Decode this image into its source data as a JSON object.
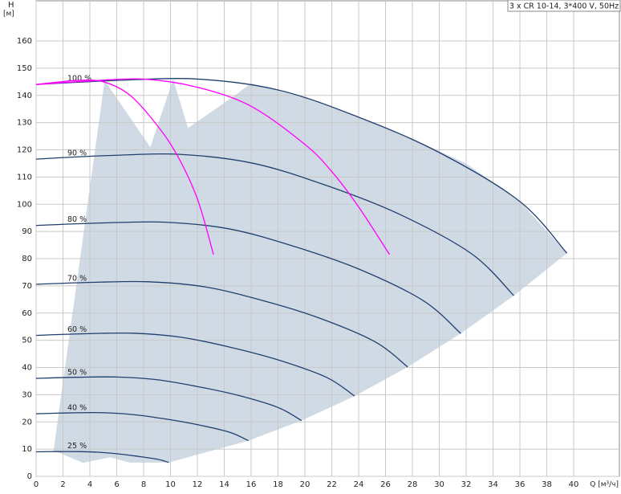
{
  "chart_data": {
    "type": "line",
    "title": "3 x CR 10-14, 3*400 V, 50Hz",
    "y_label": "H",
    "y_unit": "[м]",
    "x_label": "Q [м³/ч]",
    "xlim": [
      0,
      43.4
    ],
    "ylim": [
      0,
      175
    ],
    "xticks": [
      0,
      2,
      4,
      6,
      8,
      10,
      12,
      14,
      16,
      18,
      20,
      22,
      24,
      26,
      28,
      30,
      32,
      34,
      36,
      38,
      40
    ],
    "yticks": [
      0,
      10,
      20,
      30,
      40,
      50,
      60,
      70,
      80,
      90,
      100,
      110,
      120,
      130,
      140,
      150,
      160
    ],
    "grid": true,
    "series": [
      {
        "name": "100 %",
        "color": "#1f3f6e",
        "x": [
          0,
          6,
          12,
          18,
          24,
          30,
          36,
          39.5
        ],
        "values": [
          144,
          145.5,
          146,
          142,
          132,
          119,
          101,
          82
        ]
      },
      {
        "name": "90 %",
        "color": "#1f3f6e",
        "x": [
          0,
          5.4,
          10.8,
          16.2,
          21.6,
          27,
          32.4,
          35.55
        ],
        "values": [
          116.6,
          117.9,
          118.3,
          115.0,
          106.9,
          96.4,
          81.8,
          66.4
        ]
      },
      {
        "name": "80 %",
        "color": "#1f3f6e",
        "x": [
          0,
          4.8,
          9.6,
          14.4,
          19.2,
          24,
          28.8,
          31.6
        ],
        "values": [
          92.2,
          93.1,
          93.4,
          90.9,
          84.5,
          76.2,
          64.6,
          52.5
        ]
      },
      {
        "name": "70 %",
        "color": "#1f3f6e",
        "x": [
          0,
          4.2,
          8.4,
          12.6,
          16.8,
          21,
          25.2,
          27.65
        ],
        "values": [
          70.6,
          71.3,
          71.5,
          69.6,
          64.7,
          58.3,
          49.5,
          40.2
        ]
      },
      {
        "name": "60 %",
        "color": "#1f3f6e",
        "x": [
          0,
          3.6,
          7.2,
          10.8,
          14.4,
          18,
          21.6,
          23.7
        ],
        "values": [
          51.8,
          52.4,
          52.6,
          51.1,
          47.5,
          42.8,
          36.4,
          29.5
        ]
      },
      {
        "name": "50 %",
        "color": "#1f3f6e",
        "x": [
          0,
          3,
          6,
          9,
          12,
          15,
          18,
          19.75
        ],
        "values": [
          36,
          36.4,
          36.5,
          35.5,
          33,
          29.8,
          25.3,
          20.5
        ]
      },
      {
        "name": "40 %",
        "color": "#1f3f6e",
        "x": [
          0,
          2.4,
          4.8,
          7.2,
          9.6,
          12,
          14.4,
          15.8
        ],
        "values": [
          23,
          23.3,
          23.4,
          22.7,
          21.1,
          19,
          16.2,
          13.1
        ]
      },
      {
        "name": "25 %",
        "color": "#1f3f6e",
        "x": [
          0,
          1.5,
          3,
          4.5,
          6,
          7.5,
          9,
          9.88
        ],
        "values": [
          9,
          9.1,
          9.1,
          8.9,
          8.3,
          7.4,
          6.3,
          5.1
        ]
      }
    ],
    "duty_curves": [
      {
        "color": "#ff00ff",
        "x": [
          0,
          3,
          5,
          7,
          9,
          10.5,
          12,
          13.2
        ],
        "values": [
          144,
          145.5,
          145,
          140,
          129,
          118,
          102,
          81.5
        ]
      },
      {
        "color": "#ff00ff",
        "x": [
          0,
          4,
          8,
          12,
          16,
          20,
          22,
          24,
          26.3
        ],
        "values": [
          144,
          145.3,
          146,
          143,
          136,
          122,
          112,
          99,
          81.5
        ]
      }
    ],
    "region": {
      "color": "#d0dae4",
      "x": [
        1.3,
        5.1,
        8.5,
        10.2,
        11.3,
        14.8,
        16,
        20,
        24,
        28,
        32,
        36,
        39.5,
        35.55,
        31.6,
        27.65,
        23.7,
        19.75,
        15.8,
        9.88,
        7,
        5.5,
        3.5,
        2
      ],
      "values": [
        9.5,
        145.5,
        121,
        146,
        128,
        140,
        144.5,
        139,
        132,
        124,
        115,
        101,
        82,
        66.4,
        52.5,
        40.2,
        29.5,
        20.5,
        13.1,
        5.1,
        5,
        7,
        5,
        8
      ]
    }
  }
}
